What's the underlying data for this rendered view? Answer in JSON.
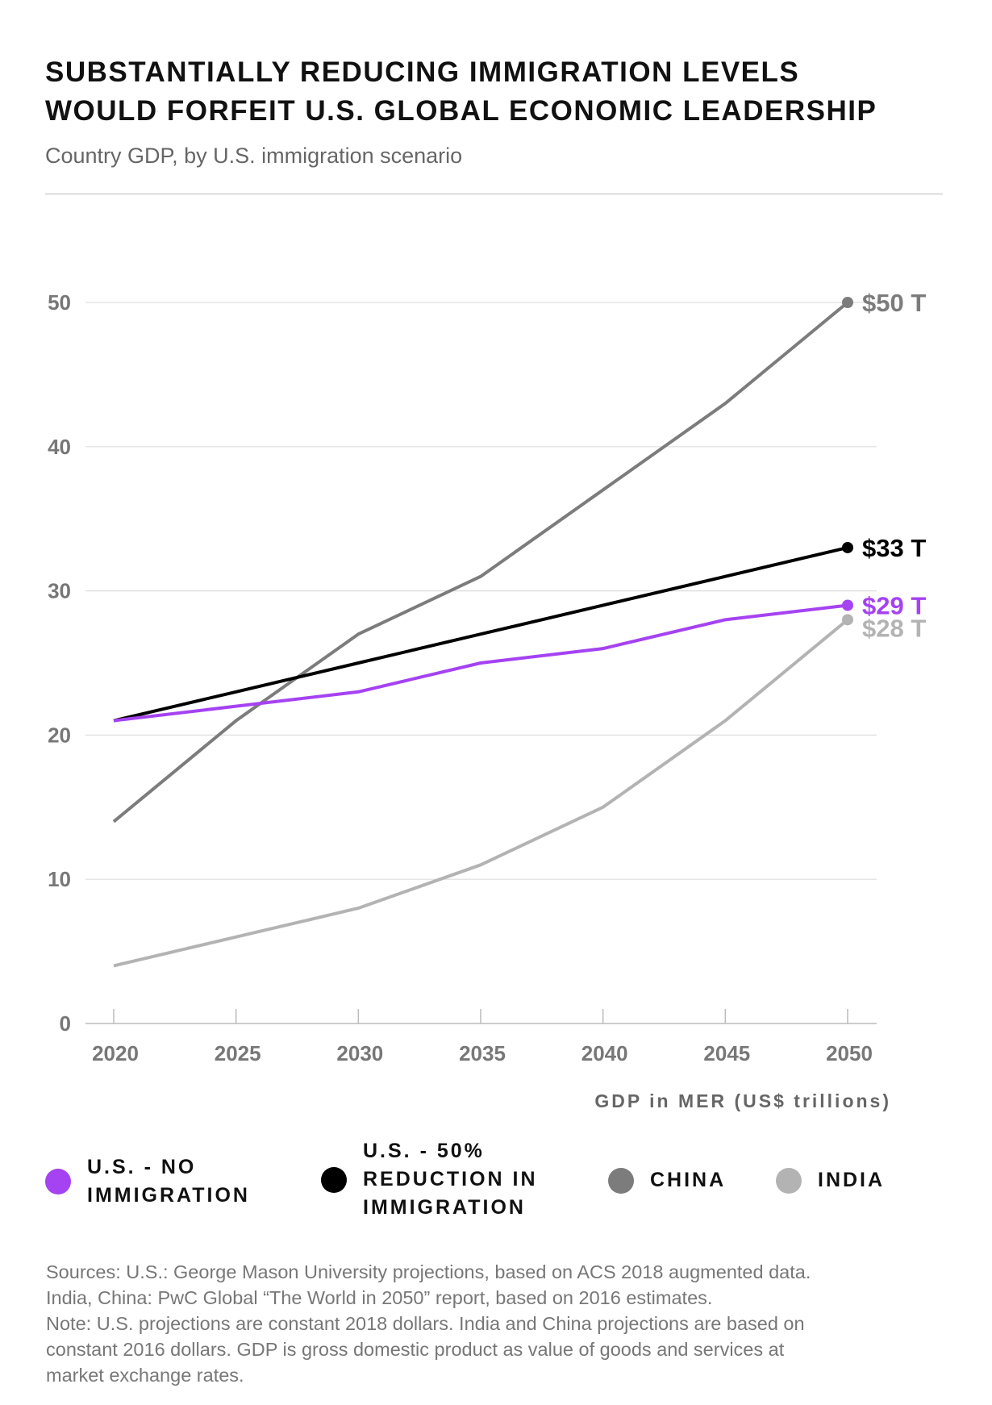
{
  "header": {
    "title_line1": "Substantially reducing immigration levels",
    "title_line2": "would forfeit U.S. global economic leadership",
    "subtitle": "Country GDP, by U.S. immigration scenario"
  },
  "chart_data": {
    "type": "line",
    "title": "Substantially reducing immigration levels would forfeit U.S. global economic leadership",
    "subtitle": "Country GDP, by U.S. immigration scenario",
    "xlabel": "GDP in MER (US$ trillions)",
    "ylabel": "",
    "x": [
      2020,
      2025,
      2030,
      2035,
      2040,
      2045,
      2050
    ],
    "x_ticks": [
      "2020",
      "2025",
      "2030",
      "2035",
      "2040",
      "2045",
      "2050"
    ],
    "y_ticks": [
      "0",
      "10",
      "20",
      "30",
      "40",
      "50"
    ],
    "ylim": [
      0,
      50
    ],
    "grid": true,
    "legend_placement": "bottom",
    "series": [
      {
        "name": "U.S. - No immigration",
        "color": "#a542f2",
        "values": [
          21,
          22,
          23,
          25,
          26,
          28,
          29
        ],
        "end_label": "$29 T"
      },
      {
        "name": "U.S. - 50% reduction in immigration",
        "color": "#000000",
        "values": [
          21,
          23,
          25,
          27,
          29,
          31,
          33
        ],
        "end_label": "$33 T"
      },
      {
        "name": "China",
        "color": "#7c7c7c",
        "values": [
          14,
          21,
          27,
          31,
          37,
          43,
          50
        ],
        "end_label": "$50 T"
      },
      {
        "name": "India",
        "color": "#b3b3b3",
        "values": [
          4,
          6,
          8,
          11,
          15,
          21,
          28
        ],
        "end_label": "$28 T"
      }
    ]
  },
  "legend": {
    "items": [
      {
        "label_lines": [
          "U.S. - No",
          "immigration"
        ]
      },
      {
        "label_lines": [
          "U.S. - 50%",
          "reduction in",
          "immigration"
        ]
      },
      {
        "label_lines": [
          "China"
        ]
      },
      {
        "label_lines": [
          "India"
        ]
      }
    ]
  },
  "footer": {
    "lines": [
      "Sources: U.S.: George Mason University projections, based on ACS 2018 augmented data.",
      "India, China: PwC Global “The World in 2050” report, based on 2016 estimates.",
      "Note: U.S. projections are constant 2018 dollars. India and China projections are based on",
      "constant 2016 dollars. GDP is gross domestic product as value of goods and services at",
      "market exchange rates."
    ]
  }
}
